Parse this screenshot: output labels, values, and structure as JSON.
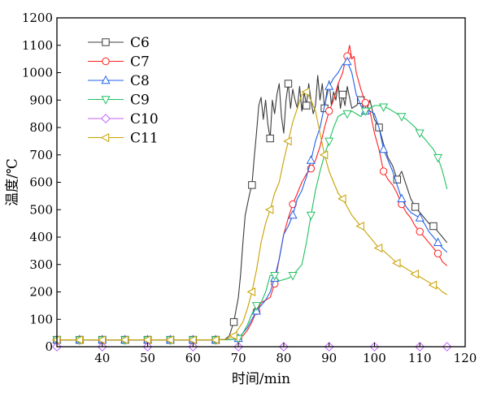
{
  "chart_data": {
    "type": "line",
    "xlabel": "时间/min",
    "ylabel": "温度/℃",
    "xlim": [
      30,
      120
    ],
    "ylim": [
      0,
      1200
    ],
    "xticks": [
      40,
      50,
      60,
      70,
      80,
      90,
      100,
      110,
      120
    ],
    "yticks": [
      0,
      100,
      200,
      300,
      400,
      500,
      600,
      700,
      800,
      900,
      1000,
      1100,
      1200
    ],
    "grid": false,
    "legend_position": "top-left",
    "series": [
      {
        "name": "C6",
        "color": "#3c3c3c",
        "marker": "square",
        "points": [
          [
            30,
            25
          ],
          [
            35,
            25
          ],
          [
            40,
            25
          ],
          [
            45,
            25
          ],
          [
            50,
            25
          ],
          [
            55,
            25
          ],
          [
            60,
            25
          ],
          [
            65,
            25
          ],
          [
            67,
            26
          ],
          [
            68,
            40
          ],
          [
            69,
            90
          ],
          [
            70,
            180
          ],
          [
            70.5,
            265
          ],
          [
            71,
            380
          ],
          [
            71.5,
            480
          ],
          [
            72,
            520
          ],
          [
            72.5,
            560
          ],
          [
            73,
            590
          ],
          [
            73.5,
            690
          ],
          [
            74,
            780
          ],
          [
            74.5,
            880
          ],
          [
            75,
            910
          ],
          [
            75.5,
            830
          ],
          [
            76,
            900
          ],
          [
            76.5,
            810
          ],
          [
            77,
            760
          ],
          [
            77.5,
            900
          ],
          [
            78,
            850
          ],
          [
            78.5,
            920
          ],
          [
            79,
            960
          ],
          [
            79.5,
            840
          ],
          [
            80,
            780
          ],
          [
            80.5,
            900
          ],
          [
            81,
            960
          ],
          [
            81.5,
            870
          ],
          [
            82,
            940
          ],
          [
            82.5,
            900
          ],
          [
            83,
            870
          ],
          [
            83.5,
            950
          ],
          [
            84,
            860
          ],
          [
            84.5,
            930
          ],
          [
            85,
            880
          ],
          [
            85.5,
            960
          ],
          [
            86,
            900
          ],
          [
            86.5,
            850
          ],
          [
            87,
            880
          ],
          [
            87.5,
            990
          ],
          [
            88,
            900
          ],
          [
            88.5,
            960
          ],
          [
            89,
            870
          ],
          [
            89.5,
            930
          ],
          [
            90,
            970
          ],
          [
            90.5,
            880
          ],
          [
            91,
            930
          ],
          [
            91.5,
            900
          ],
          [
            92,
            960
          ],
          [
            92.5,
            870
          ],
          [
            93,
            920
          ],
          [
            93.5,
            880
          ],
          [
            94,
            950
          ],
          [
            95,
            870
          ],
          [
            96,
            880
          ],
          [
            97,
            900
          ],
          [
            98,
            850
          ],
          [
            99,
            900
          ],
          [
            100,
            830
          ],
          [
            101,
            800
          ],
          [
            102,
            740
          ],
          [
            103,
            690
          ],
          [
            104,
            660
          ],
          [
            105,
            610
          ],
          [
            106,
            640
          ],
          [
            107,
            590
          ],
          [
            108,
            540
          ],
          [
            109,
            510
          ],
          [
            110,
            490
          ],
          [
            111,
            470
          ],
          [
            112,
            450
          ],
          [
            113,
            440
          ],
          [
            114,
            420
          ],
          [
            115,
            400
          ],
          [
            116,
            380
          ]
        ]
      },
      {
        "name": "C7",
        "color": "#ff2020",
        "marker": "circle",
        "points": [
          [
            30,
            25
          ],
          [
            35,
            25
          ],
          [
            40,
            25
          ],
          [
            45,
            25
          ],
          [
            50,
            25
          ],
          [
            55,
            25
          ],
          [
            60,
            25
          ],
          [
            65,
            25
          ],
          [
            68,
            26
          ],
          [
            70,
            30
          ],
          [
            71,
            40
          ],
          [
            72,
            60
          ],
          [
            73,
            90
          ],
          [
            74,
            130
          ],
          [
            75,
            160
          ],
          [
            76,
            170
          ],
          [
            77,
            180
          ],
          [
            78,
            230
          ],
          [
            79,
            320
          ],
          [
            80,
            410
          ],
          [
            81,
            470
          ],
          [
            82,
            520
          ],
          [
            83,
            560
          ],
          [
            84,
            600
          ],
          [
            85,
            630
          ],
          [
            86,
            650
          ],
          [
            87,
            680
          ],
          [
            88,
            730
          ],
          [
            89,
            800
          ],
          [
            90,
            860
          ],
          [
            91,
            900
          ],
          [
            92,
            960
          ],
          [
            93,
            1000
          ],
          [
            93.5,
            1040
          ],
          [
            94,
            1060
          ],
          [
            94.5,
            1100
          ],
          [
            95,
            1050
          ],
          [
            95.5,
            1060
          ],
          [
            96,
            1000
          ],
          [
            97,
            940
          ],
          [
            98,
            890
          ],
          [
            99,
            860
          ],
          [
            100,
            780
          ],
          [
            101,
            720
          ],
          [
            102,
            640
          ],
          [
            103,
            610
          ],
          [
            104,
            590
          ],
          [
            105,
            560
          ],
          [
            106,
            520
          ],
          [
            107,
            490
          ],
          [
            108,
            470
          ],
          [
            109,
            440
          ],
          [
            110,
            420
          ],
          [
            111,
            400
          ],
          [
            112,
            380
          ],
          [
            113,
            360
          ],
          [
            114,
            340
          ],
          [
            115,
            310
          ],
          [
            116,
            295
          ]
        ]
      },
      {
        "name": "C8",
        "color": "#2060e8",
        "marker": "triangle-up",
        "points": [
          [
            30,
            25
          ],
          [
            35,
            25
          ],
          [
            40,
            25
          ],
          [
            45,
            25
          ],
          [
            50,
            25
          ],
          [
            55,
            25
          ],
          [
            60,
            25
          ],
          [
            65,
            25
          ],
          [
            68,
            26
          ],
          [
            70,
            30
          ],
          [
            71,
            50
          ],
          [
            72,
            70
          ],
          [
            73,
            100
          ],
          [
            74,
            130
          ],
          [
            75,
            150
          ],
          [
            76,
            170
          ],
          [
            77,
            200
          ],
          [
            78,
            250
          ],
          [
            79,
            320
          ],
          [
            80,
            410
          ],
          [
            81,
            440
          ],
          [
            82,
            480
          ],
          [
            83,
            540
          ],
          [
            84,
            570
          ],
          [
            85,
            620
          ],
          [
            86,
            680
          ],
          [
            87,
            750
          ],
          [
            88,
            800
          ],
          [
            89,
            880
          ],
          [
            90,
            950
          ],
          [
            91,
            980
          ],
          [
            92,
            1000
          ],
          [
            93,
            1030
          ],
          [
            94,
            1040
          ],
          [
            95,
            1000
          ],
          [
            96,
            920
          ],
          [
            97,
            880
          ],
          [
            98,
            860
          ],
          [
            99,
            860
          ],
          [
            100,
            850
          ],
          [
            101,
            800
          ],
          [
            102,
            720
          ],
          [
            103,
            680
          ],
          [
            104,
            640
          ],
          [
            105,
            590
          ],
          [
            106,
            540
          ],
          [
            107,
            510
          ],
          [
            108,
            490
          ],
          [
            109,
            480
          ],
          [
            110,
            470
          ],
          [
            111,
            450
          ],
          [
            112,
            420
          ],
          [
            113,
            400
          ],
          [
            114,
            380
          ],
          [
            115,
            360
          ],
          [
            116,
            345
          ]
        ]
      },
      {
        "name": "C9",
        "color": "#20c060",
        "marker": "triangle-down",
        "points": [
          [
            30,
            25
          ],
          [
            35,
            25
          ],
          [
            40,
            25
          ],
          [
            45,
            25
          ],
          [
            50,
            25
          ],
          [
            55,
            25
          ],
          [
            60,
            25
          ],
          [
            65,
            25
          ],
          [
            68,
            26
          ],
          [
            70,
            30
          ],
          [
            71,
            50
          ],
          [
            72,
            80
          ],
          [
            73,
            120
          ],
          [
            74,
            150
          ],
          [
            75,
            160
          ],
          [
            76,
            200
          ],
          [
            77,
            260
          ],
          [
            78,
            260
          ],
          [
            79,
            240
          ],
          [
            80,
            245
          ],
          [
            81,
            250
          ],
          [
            82,
            260
          ],
          [
            83,
            280
          ],
          [
            84,
            300
          ],
          [
            85,
            380
          ],
          [
            86,
            480
          ],
          [
            87,
            570
          ],
          [
            88,
            640
          ],
          [
            89,
            700
          ],
          [
            90,
            750
          ],
          [
            91,
            800
          ],
          [
            92,
            840
          ],
          [
            93,
            850
          ],
          [
            94,
            850
          ],
          [
            95,
            860
          ],
          [
            96,
            850
          ],
          [
            97,
            840
          ],
          [
            98,
            860
          ],
          [
            99,
            870
          ],
          [
            100,
            880
          ],
          [
            101,
            880
          ],
          [
            102,
            875
          ],
          [
            103,
            870
          ],
          [
            104,
            860
          ],
          [
            105,
            850
          ],
          [
            106,
            840
          ],
          [
            107,
            830
          ],
          [
            108,
            815
          ],
          [
            109,
            800
          ],
          [
            110,
            780
          ],
          [
            111,
            760
          ],
          [
            112,
            740
          ],
          [
            113,
            720
          ],
          [
            114,
            690
          ],
          [
            115,
            640
          ],
          [
            116,
            575
          ]
        ]
      },
      {
        "name": "C10",
        "color": "#c060ff",
        "marker": "diamond",
        "points": [
          [
            30,
            0
          ],
          [
            40,
            0
          ],
          [
            50,
            0
          ],
          [
            60,
            0
          ],
          [
            70,
            0
          ],
          [
            80,
            0
          ],
          [
            90,
            0
          ],
          [
            100,
            0
          ],
          [
            110,
            0
          ],
          [
            116,
            0
          ]
        ]
      },
      {
        "name": "C11",
        "color": "#c8a000",
        "marker": "triangle-left",
        "points": [
          [
            30,
            25
          ],
          [
            35,
            25
          ],
          [
            40,
            25
          ],
          [
            45,
            25
          ],
          [
            50,
            25
          ],
          [
            55,
            25
          ],
          [
            60,
            25
          ],
          [
            65,
            25
          ],
          [
            67,
            26
          ],
          [
            69,
            40
          ],
          [
            71,
            90
          ],
          [
            72,
            140
          ],
          [
            73,
            200
          ],
          [
            74,
            280
          ],
          [
            75,
            380
          ],
          [
            76,
            450
          ],
          [
            77,
            500
          ],
          [
            78,
            560
          ],
          [
            79,
            600
          ],
          [
            80,
            680
          ],
          [
            81,
            750
          ],
          [
            82,
            820
          ],
          [
            83,
            870
          ],
          [
            84,
            920
          ],
          [
            85,
            930
          ],
          [
            86,
            900
          ],
          [
            87,
            860
          ],
          [
            88,
            780
          ],
          [
            89,
            700
          ],
          [
            90,
            640
          ],
          [
            91,
            600
          ],
          [
            92,
            560
          ],
          [
            93,
            540
          ],
          [
            94,
            510
          ],
          [
            95,
            480
          ],
          [
            96,
            460
          ],
          [
            97,
            440
          ],
          [
            98,
            420
          ],
          [
            99,
            400
          ],
          [
            100,
            380
          ],
          [
            101,
            360
          ],
          [
            102,
            350
          ],
          [
            103,
            335
          ],
          [
            104,
            320
          ],
          [
            105,
            305
          ],
          [
            106,
            295
          ],
          [
            107,
            285
          ],
          [
            108,
            275
          ],
          [
            109,
            265
          ],
          [
            110,
            255
          ],
          [
            111,
            245
          ],
          [
            112,
            235
          ],
          [
            113,
            225
          ],
          [
            114,
            215
          ],
          [
            115,
            200
          ],
          [
            116,
            190
          ]
        ]
      }
    ]
  }
}
